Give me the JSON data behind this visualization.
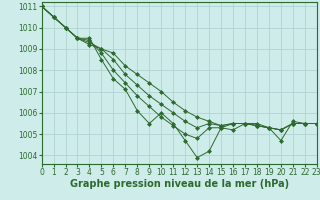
{
  "x": [
    0,
    1,
    2,
    3,
    4,
    5,
    6,
    7,
    8,
    9,
    10,
    11,
    12,
    13,
    14,
    15,
    16,
    17,
    18,
    19,
    20,
    21,
    22,
    23
  ],
  "series": [
    [
      1011.0,
      1010.5,
      1010.0,
      1009.5,
      1009.2,
      1009.0,
      1008.8,
      1008.2,
      1007.8,
      1007.4,
      1007.0,
      1006.5,
      1006.1,
      1005.8,
      1005.6,
      1005.4,
      1005.5,
      1005.5,
      1005.4,
      1005.3,
      1005.2,
      1005.5,
      1005.5,
      1005.5
    ],
    [
      1011.0,
      1010.5,
      1010.0,
      1009.5,
      1009.3,
      1009.0,
      1008.5,
      1007.8,
      1007.3,
      1006.8,
      1006.4,
      1006.0,
      1005.6,
      1005.3,
      1005.5,
      1005.4,
      1005.5,
      1005.5,
      1005.4,
      1005.3,
      1005.2,
      1005.5,
      1005.5,
      1005.5
    ],
    [
      1011.0,
      1010.5,
      1010.0,
      1009.5,
      1009.4,
      1008.8,
      1008.0,
      1007.4,
      1006.8,
      1006.3,
      1005.8,
      1005.4,
      1005.0,
      1004.8,
      1005.3,
      1005.3,
      1005.5,
      1005.5,
      1005.4,
      1005.3,
      1005.2,
      1005.5,
      1005.5,
      1005.5
    ],
    [
      1011.0,
      1010.5,
      1010.0,
      1009.5,
      1009.5,
      1008.5,
      1007.6,
      1007.1,
      1006.1,
      1005.5,
      1006.0,
      1005.5,
      1004.7,
      1003.9,
      1004.2,
      1005.3,
      1005.2,
      1005.5,
      1005.5,
      1005.3,
      1004.7,
      1005.6,
      1005.5,
      1005.5
    ]
  ],
  "line_color": "#2d6a2d",
  "marker": "D",
  "marker_size": 2,
  "xlim": [
    0,
    23
  ],
  "ylim": [
    1003.6,
    1011.2
  ],
  "yticks": [
    1004,
    1005,
    1006,
    1007,
    1008,
    1009,
    1010,
    1011
  ],
  "xticks": [
    0,
    1,
    2,
    3,
    4,
    5,
    6,
    7,
    8,
    9,
    10,
    11,
    12,
    13,
    14,
    15,
    16,
    17,
    18,
    19,
    20,
    21,
    22,
    23
  ],
  "xlabel": "Graphe pression niveau de la mer (hPa)",
  "bg_color": "#ceecea",
  "grid_color": "#aacfcc",
  "tick_fontsize": 5.5,
  "label_fontsize": 7
}
